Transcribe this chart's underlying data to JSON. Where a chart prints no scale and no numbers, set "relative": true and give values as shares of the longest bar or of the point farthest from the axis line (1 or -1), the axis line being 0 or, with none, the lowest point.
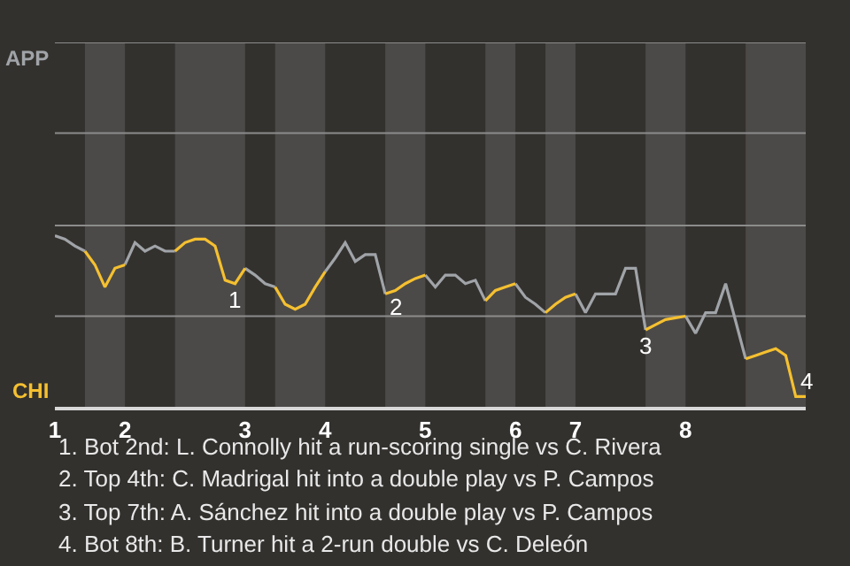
{
  "chart_data": {
    "type": "line",
    "categories": [
      "1",
      null,
      null,
      null,
      null,
      null,
      null,
      "2",
      null,
      null,
      null,
      null,
      null,
      null,
      null,
      null,
      null,
      null,
      null,
      "3",
      null,
      null,
      null,
      null,
      null,
      null,
      null,
      "4",
      null,
      null,
      null,
      null,
      null,
      null,
      null,
      null,
      null,
      "5",
      null,
      null,
      null,
      null,
      null,
      null,
      null,
      null,
      "6",
      null,
      null,
      null,
      null,
      null,
      "7",
      null,
      null,
      null,
      null,
      null,
      null,
      null,
      null,
      null,
      null,
      "8",
      null,
      null,
      null,
      null,
      null,
      null,
      null,
      null,
      null,
      null,
      null,
      null
    ],
    "relative": true,
    "series": [
      {
        "color": "#a0a4a8",
        "values": [
          1,
          0.98,
          0.94,
          0.91,
          null,
          null,
          null,
          0.83,
          0.96,
          0.91,
          0.94,
          0.91,
          0.91,
          null,
          null,
          null,
          null,
          null,
          null,
          0.81,
          0.77,
          0.72,
          0.7,
          null,
          null,
          null,
          null,
          0.79,
          0.87,
          0.96,
          0.85,
          0.89,
          0.89,
          0.66,
          null,
          null,
          null,
          0.77,
          0.7,
          0.77,
          0.77,
          0.72,
          0.74,
          0.62,
          null,
          null,
          0.72,
          0.64,
          0.6,
          0.55,
          null,
          null,
          0.66,
          0.55,
          0.66,
          0.66,
          0.66,
          0.81,
          0.81,
          0.45,
          null,
          null,
          null,
          0.53,
          0.43,
          0.55,
          0.55,
          0.72,
          0.5,
          0.28,
          null,
          null,
          null,
          null,
          null,
          null
        ]
      },
      {
        "color": "#f5c030",
        "values": [
          null,
          null,
          null,
          0.91,
          0.83,
          0.7,
          0.81,
          0.83,
          null,
          null,
          null,
          null,
          0.91,
          0.96,
          0.98,
          0.98,
          0.94,
          0.74,
          0.72,
          0.81,
          null,
          null,
          0.7,
          0.6,
          0.57,
          0.6,
          0.7,
          0.79,
          null,
          null,
          null,
          null,
          null,
          0.66,
          0.68,
          0.72,
          0.75,
          0.77,
          null,
          null,
          null,
          null,
          null,
          0.62,
          0.68,
          0.7,
          0.72,
          null,
          null,
          0.55,
          0.6,
          0.64,
          0.66,
          null,
          null,
          null,
          null,
          null,
          null,
          0.45,
          0.48,
          0.51,
          0.52,
          0.53,
          null,
          null,
          null,
          null,
          null,
          0.28,
          0.3,
          0.32,
          0.34,
          0.3,
          0.06,
          0.06
        ]
      }
    ],
    "marker": "none",
    "line_style": "solid",
    "ref_lines": [
      {
        "axis": "y",
        "value": 0.53,
        "color": "#8c8c8c"
      },
      {
        "axis": "y",
        "value": 1.06,
        "color": "#8c8c8c"
      },
      {
        "axis": "y",
        "value": 1.6,
        "color": "#8c8c8c"
      },
      {
        "axis": "y",
        "value": 2.13,
        "color": "#8c8c8c"
      }
    ],
    "annotations": [
      "APP",
      "CHI",
      {
        "text": "1",
        "y": 0.72
      },
      {
        "text": "2",
        "y": 0.68
      },
      {
        "text": "3",
        "y": 0.45
      },
      {
        "text": "4",
        "y": 0.06
      },
      "1. Bot 2nd: L. Connolly hit a run-scoring single vs C. Rivera",
      "2. Top 4th: C. Madrigal hit into a double play vs P. Campos",
      "3. Top 7th: A. Sánchez hit into a double play vs P. Campos",
      "4. Bot 8th: B. Turner hit a 2-run double vs C. Deleón"
    ]
  }
}
